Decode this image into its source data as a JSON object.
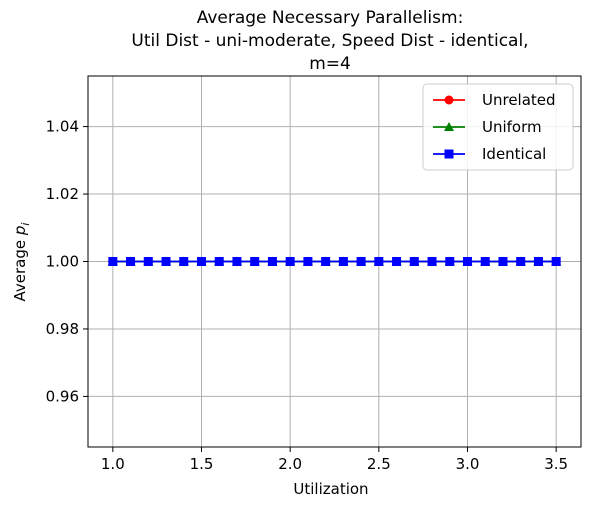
{
  "chart_data": {
    "type": "line",
    "title_lines": [
      "Average Necessary Parallelism:",
      "Util Dist - uni-moderate, Speed Dist - identical,",
      "m=4"
    ],
    "xlabel": "Utilization",
    "ylabel_main": "Average ",
    "ylabel_symbol": "p",
    "ylabel_subscript": "i",
    "xlim": [
      0.86,
      3.64
    ],
    "ylim": [
      0.945,
      1.055
    ],
    "xticks": [
      1.0,
      1.5,
      2.0,
      2.5,
      3.0,
      3.5
    ],
    "xtick_labels": [
      "1.0",
      "1.5",
      "2.0",
      "2.5",
      "3.0",
      "3.5"
    ],
    "yticks": [
      0.96,
      0.98,
      1.0,
      1.02,
      1.04
    ],
    "ytick_labels": [
      "0.96",
      "0.98",
      "1.00",
      "1.02",
      "1.04"
    ],
    "grid": true,
    "legend_position": "top-right",
    "x": [
      1.0,
      1.1,
      1.2,
      1.3,
      1.4,
      1.5,
      1.6,
      1.7,
      1.8,
      1.9,
      2.0,
      2.1,
      2.2,
      2.3,
      2.4,
      2.5,
      2.6,
      2.7,
      2.8,
      2.9,
      3.0,
      3.1,
      3.2,
      3.3,
      3.4,
      3.5
    ],
    "series": [
      {
        "name": "Unrelated",
        "color": "#ff0000",
        "marker": "circle",
        "values": [
          1,
          1,
          1,
          1,
          1,
          1,
          1,
          1,
          1,
          1,
          1,
          1,
          1,
          1,
          1,
          1,
          1,
          1,
          1,
          1,
          1,
          1,
          1,
          1,
          1,
          1
        ]
      },
      {
        "name": "Uniform",
        "color": "#008000",
        "marker": "triangle",
        "values": [
          1,
          1,
          1,
          1,
          1,
          1,
          1,
          1,
          1,
          1,
          1,
          1,
          1,
          1,
          1,
          1,
          1,
          1,
          1,
          1,
          1,
          1,
          1,
          1,
          1,
          1
        ]
      },
      {
        "name": "Identical",
        "color": "#0000ff",
        "marker": "square",
        "values": [
          1,
          1,
          1,
          1,
          1,
          1,
          1,
          1,
          1,
          1,
          1,
          1,
          1,
          1,
          1,
          1,
          1,
          1,
          1,
          1,
          1,
          1,
          1,
          1,
          1,
          1
        ]
      }
    ]
  }
}
